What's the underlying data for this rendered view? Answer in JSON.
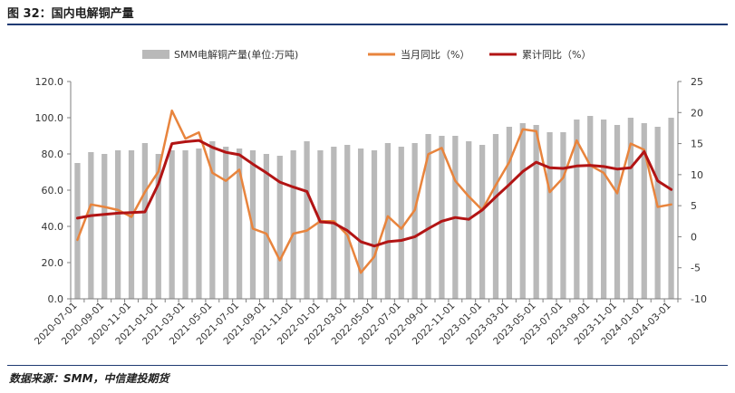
{
  "header": {
    "title": "图 32：国内电解铜产量"
  },
  "footer": {
    "source": "数据来源：SMM，中信建投期货"
  },
  "colors": {
    "bar": "#b9b9b9",
    "monthly": "#e8843d",
    "cumulative": "#b21414",
    "axis": "#7f7f7f"
  },
  "chart_data": {
    "type": "bar",
    "x_tick_labels": [
      "2020-07-01",
      "2020-09-01",
      "2020-11-01",
      "2021-01-01",
      "2021-03-01",
      "2021-05-01",
      "2021-07-01",
      "2021-09-01",
      "2021-11-01",
      "2022-01-01",
      "2022-03-01",
      "2022-05-01",
      "2022-07-01",
      "2022-09-01",
      "2022-11-01",
      "2023-01-01",
      "2023-03-01",
      "2023-05-01",
      "2023-07-01",
      "2023-09-01",
      "2023-11-01",
      "2024-01-01",
      "2024-03-01"
    ],
    "categories": [
      "2020-07",
      "2020-08",
      "2020-09",
      "2020-10",
      "2020-11",
      "2020-12",
      "2021-01",
      "2021-02",
      "2021-03",
      "2021-04",
      "2021-05",
      "2021-06",
      "2021-07",
      "2021-08",
      "2021-09",
      "2021-10",
      "2021-11",
      "2021-12",
      "2022-01",
      "2022-02",
      "2022-03",
      "2022-04",
      "2022-05",
      "2022-06",
      "2022-07",
      "2022-08",
      "2022-09",
      "2022-10",
      "2022-11",
      "2022-12",
      "2023-01",
      "2023-02",
      "2023-03",
      "2023-04",
      "2023-05",
      "2023-06",
      "2023-07",
      "2023-08",
      "2023-09",
      "2023-10",
      "2023-11",
      "2023-12",
      "2024-01",
      "2024-02",
      "2024-03"
    ],
    "series": [
      {
        "name": "SMM电解铜产量(单位:万吨)",
        "type": "bar",
        "axis": "left",
        "values": [
          75,
          81,
          80,
          82,
          82,
          86,
          80,
          82,
          82,
          83,
          87,
          84,
          83,
          82,
          80,
          79,
          82,
          87,
          82,
          84,
          85,
          83,
          82,
          86,
          84,
          86,
          91,
          90,
          90,
          87,
          85,
          91,
          95,
          97,
          96,
          92,
          92,
          99,
          101,
          99,
          96,
          100,
          97,
          95,
          100
        ]
      },
      {
        "name": "当月同比（%）",
        "type": "line",
        "axis": "right",
        "values": [
          -0.5,
          5.2,
          4.8,
          4.3,
          3.2,
          7.2,
          10.5,
          20.3,
          15.8,
          16.8,
          10.3,
          9,
          10.8,
          1.3,
          0.5,
          -3.8,
          0.5,
          1,
          2.5,
          2.5,
          0.3,
          -5.8,
          -3.2,
          3.3,
          1.3,
          4.3,
          13.3,
          14.3,
          9,
          6.5,
          4.3,
          8.3,
          12,
          17.3,
          17,
          7.2,
          9.5,
          15.5,
          11.5,
          10.3,
          7,
          15,
          14,
          4.8,
          5.2
        ]
      },
      {
        "name": "累计同比（%）",
        "type": "line",
        "axis": "right",
        "values": [
          3,
          3.4,
          3.6,
          3.8,
          3.9,
          4,
          8.5,
          15,
          15.3,
          15.5,
          14.4,
          13.6,
          13.2,
          11.7,
          10.3,
          8.8,
          8,
          7.3,
          2.4,
          2.2,
          1,
          -0.8,
          -1.5,
          -0.8,
          -0.6,
          0,
          1.3,
          2.5,
          3.1,
          2.8,
          4.3,
          6.4,
          8.4,
          10.5,
          12,
          11.1,
          11,
          11.4,
          11.5,
          11.3,
          10.9,
          11.1,
          13.7,
          9,
          7.6
        ]
      }
    ],
    "y_left": {
      "min": 0,
      "max": 120,
      "step": 20,
      "ticks": [
        "0.0",
        "20.0",
        "40.0",
        "60.0",
        "80.0",
        "100.0",
        "120.0"
      ]
    },
    "y_right": {
      "min": -10,
      "max": 25,
      "step": 5,
      "ticks": [
        "-10",
        "-5",
        "0",
        "5",
        "10",
        "15",
        "20",
        "25"
      ]
    },
    "legend_position": "top-center",
    "grid": false
  }
}
